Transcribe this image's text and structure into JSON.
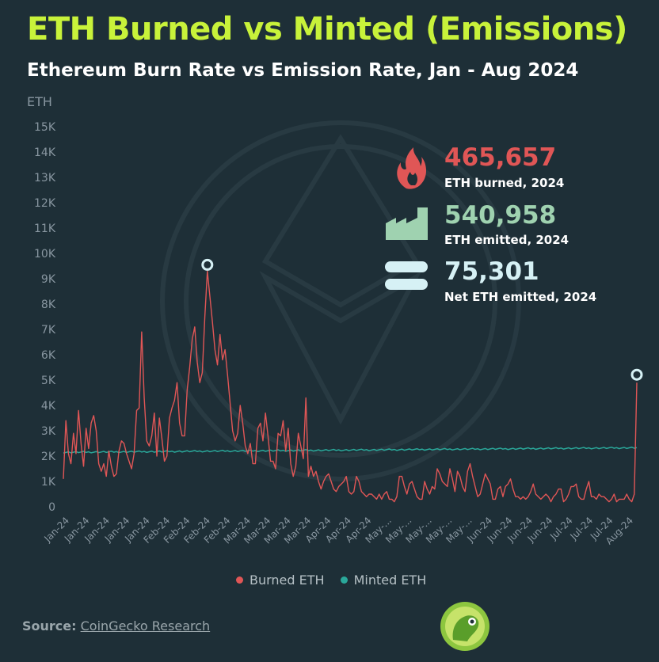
{
  "colors": {
    "background": "#1e2f37",
    "title": "#c8f23a",
    "burned": "#e05656",
    "minted": "#2aa89a",
    "stat_emitted": "#9fd2b0",
    "stat_net": "#d6f1f5",
    "axis_text": "#8896a0"
  },
  "header": {
    "title": "ETH Burned vs Minted (Emissions)",
    "subtitle": "Ethereum Burn Rate vs Emission Rate, Jan - Aug 2024"
  },
  "stats": [
    {
      "value": "465,657",
      "label": "ETH burned, 2024",
      "icon": "fire-icon",
      "color": "#e05656"
    },
    {
      "value": "540,958",
      "label": "ETH emitted, 2024",
      "icon": "factory-icon",
      "color": "#9fd2b0"
    },
    {
      "value": "75,301",
      "label": "Net ETH emitted, 2024",
      "icon": "equals-icon",
      "color": "#d6f1f5"
    }
  ],
  "legend": {
    "burned": "Burned ETH",
    "minted": "Minted ETH"
  },
  "source": {
    "prefix": "Source:",
    "name": "CoinGecko Research"
  },
  "chart_data": {
    "type": "line",
    "ylabel": "ETH",
    "ylim": [
      0,
      15000
    ],
    "yticks": [
      0,
      1000,
      2000,
      3000,
      4000,
      5000,
      6000,
      7000,
      8000,
      9000,
      10000,
      11000,
      12000,
      13000,
      14000,
      15000
    ],
    "ytick_labels": [
      "0",
      "1K",
      "2K",
      "3K",
      "4K",
      "5K",
      "6K",
      "7K",
      "8K",
      "9K",
      "10K",
      "11K",
      "12K",
      "13K",
      "14K",
      "15K"
    ],
    "xtick_labels": [
      "Jan-24",
      "Jan-24",
      "Jan-24",
      "Jan-24",
      "Jan-24",
      "Feb-24",
      "Feb-24",
      "Feb-24",
      "Feb-24",
      "Mar-24",
      "Mar-24",
      "Mar-24",
      "Mar-24",
      "Apr-24",
      "Apr-24",
      "Apr-24",
      "May-...",
      "May-...",
      "May-...",
      "May-...",
      "May-...",
      "Jun-24",
      "Jun-24",
      "Jun-24",
      "Jun-24",
      "Jul-24",
      "Jul-24",
      "Jul-24",
      "Aug-24"
    ],
    "grid": false,
    "legend_position": "bottom",
    "x_start": "2024-01-01",
    "x_end": "2024-08-05",
    "series": [
      {
        "name": "Burned ETH",
        "color": "#e05656",
        "values": [
          1100,
          3400,
          2100,
          1700,
          2900,
          2100,
          3800,
          2500,
          1600,
          3100,
          2300,
          3300,
          3600,
          3000,
          1700,
          1400,
          1700,
          1200,
          2200,
          1600,
          1200,
          1300,
          2200,
          2600,
          2500,
          2100,
          1800,
          1500,
          2100,
          3800,
          3900,
          6900,
          4300,
          2600,
          2400,
          2800,
          3700,
          2000,
          3500,
          2700,
          1800,
          2000,
          3500,
          3900,
          4200,
          4900,
          3300,
          2800,
          2800,
          4600,
          5500,
          6600,
          7100,
          5700,
          4900,
          5300,
          7500,
          9300,
          8300,
          7300,
          6200,
          5600,
          6800,
          5800,
          6200,
          5200,
          4100,
          3000,
          2600,
          2900,
          4000,
          3300,
          2400,
          2100,
          2500,
          1700,
          1700,
          3100,
          3300,
          2600,
          3700,
          2800,
          1800,
          1800,
          1500,
          2900,
          2800,
          3400,
          2200,
          3100,
          1700,
          1200,
          1600,
          2900,
          2400,
          1900,
          4300,
          1200,
          1600,
          1200,
          1400,
          1000,
          700,
          1000,
          1200,
          1300,
          1000,
          700,
          600,
          800,
          900,
          1000,
          1200,
          600,
          500,
          600,
          1200,
          1000,
          600,
          500,
          400,
          500,
          500,
          400,
          300,
          500,
          300,
          500,
          600,
          300,
          300,
          200,
          400,
          1200,
          1200,
          800,
          500,
          900,
          1000,
          700,
          400,
          300,
          300,
          1000,
          700,
          500,
          800,
          700,
          1500,
          1300,
          1000,
          900,
          800,
          1500,
          1100,
          600,
          1400,
          1200,
          800,
          600,
          1400,
          1700,
          1200,
          800,
          400,
          500,
          900,
          1300,
          1100,
          900,
          300,
          300,
          700,
          800,
          400,
          800,
          900,
          1100,
          700,
          400,
          400,
          300,
          400,
          300,
          400,
          600,
          900,
          500,
          400,
          300,
          400,
          500,
          400,
          200,
          400,
          500,
          700,
          700,
          200,
          300,
          500,
          800,
          800,
          900,
          400,
          300,
          300,
          700,
          1000,
          400,
          400,
          300,
          500,
          400,
          400,
          300,
          200,
          300,
          500,
          200,
          300,
          300,
          300,
          500,
          300,
          200,
          500,
          4900
        ]
      },
      {
        "name": "Minted ETH",
        "color": "#2aa89a",
        "values_note": "",
        "base_start": 2150,
        "base_end": 2330
      }
    ],
    "annotations": [
      {
        "label": "peak",
        "value": 9400,
        "date": "2024-03-05"
      },
      {
        "label": "last",
        "value": 4900,
        "date": "2024-08-05"
      }
    ]
  }
}
